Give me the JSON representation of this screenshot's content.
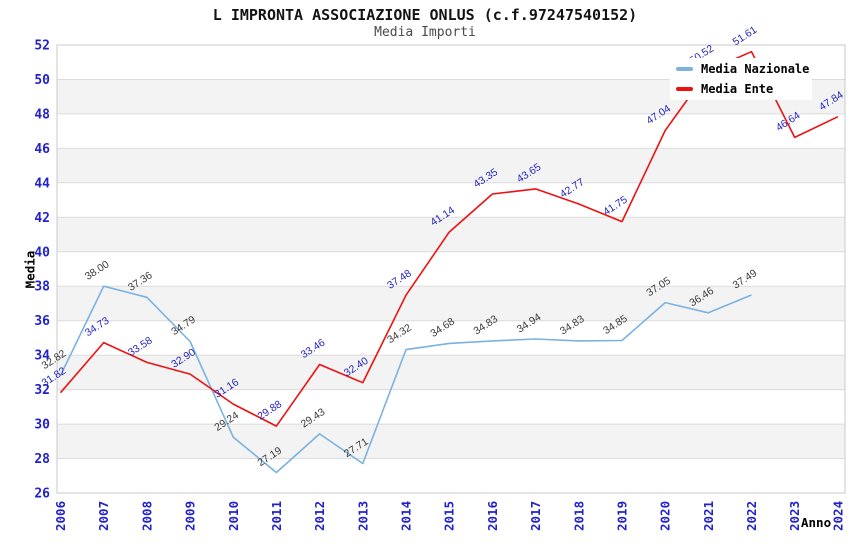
{
  "chart_data": {
    "type": "line",
    "title": "L IMPRONTA ASSOCIAZIONE ONLUS (c.f.97247540152)",
    "subtitle": "Media Importi",
    "xlabel": "Anno",
    "ylabel": "Media",
    "ylim": [
      26,
      52
    ],
    "ytick_step": 2,
    "yticks": [
      26,
      28,
      30,
      32,
      34,
      36,
      38,
      40,
      42,
      44,
      46,
      48,
      50,
      52
    ],
    "grid": "horizontal-alternating-bands",
    "legend_position": "top-right",
    "axis_color": "#2222cc",
    "band_color": "#f3f3f3",
    "gridline_color": "#dcdcdc",
    "border_color": "#c9c9c9",
    "categories": [
      2006,
      2007,
      2008,
      2009,
      2010,
      2011,
      2012,
      2013,
      2014,
      2015,
      2016,
      2017,
      2018,
      2019,
      2020,
      2021,
      2022,
      2023,
      2024
    ],
    "series": [
      {
        "name": "Media Nazionale",
        "color": "#7ab2e2",
        "label_color": "#3a3a3a",
        "values": [
          32.82,
          38.0,
          37.36,
          34.79,
          29.24,
          27.19,
          29.43,
          27.71,
          34.32,
          34.68,
          34.83,
          34.94,
          34.83,
          34.85,
          37.05,
          36.46,
          37.49,
          null,
          null
        ]
      },
      {
        "name": "Media Ente",
        "color": "#ee1111",
        "label_color": "#2525bd",
        "values": [
          31.82,
          34.73,
          33.58,
          32.9,
          31.16,
          29.88,
          33.46,
          32.4,
          37.48,
          41.14,
          43.35,
          43.65,
          42.77,
          41.75,
          47.04,
          50.52,
          51.61,
          46.64,
          47.84
        ]
      }
    ]
  },
  "legend": {
    "entries": [
      {
        "label": "Media Nazionale",
        "color": "#7ab2e2"
      },
      {
        "label": "Media Ente",
        "color": "#ee1111"
      }
    ]
  }
}
